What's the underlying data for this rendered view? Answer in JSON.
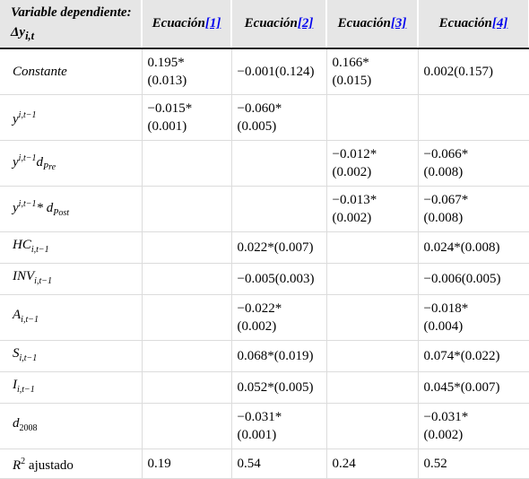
{
  "header": {
    "dependent_label": "Variable dependiente:",
    "dependent_symbol": "Δy",
    "dependent_sub": "i,t",
    "equation_word": "Ecuación",
    "equations": [
      "[1]",
      "[2]",
      "[3]",
      "[4]"
    ]
  },
  "rows": [
    {
      "var": {
        "main": "Constante"
      },
      "cells": [
        "0.195*\n(0.013)",
        "−0.001(0.124)",
        "0.166*\n(0.015)",
        "0.002(0.157)"
      ]
    },
    {
      "var": {
        "main": "y",
        "sup": "i,t−1"
      },
      "cells": [
        "−0.015*\n(0.001)",
        "−0.060*\n(0.005)",
        "",
        ""
      ]
    },
    {
      "var": {
        "main": "y",
        "sup": "i,t−1",
        "extra": "d",
        "extra_sub": "Pre"
      },
      "cells": [
        "",
        "",
        "−0.012*\n(0.002)",
        "−0.066*\n(0.008)"
      ]
    },
    {
      "var": {
        "main": "y",
        "sup": "i,t−1",
        "extra": "* d",
        "extra_sub": "Post"
      },
      "cells": [
        "",
        "",
        "−0.013*\n(0.002)",
        "−0.067*\n(0.008)"
      ]
    },
    {
      "var": {
        "main": "HC",
        "sub": "i,t−1"
      },
      "cells": [
        "",
        "0.022*(0.007)",
        "",
        "0.024*(0.008)"
      ]
    },
    {
      "var": {
        "main": "INV",
        "sub": "i,t−1"
      },
      "cells": [
        "",
        "−0.005(0.003)",
        "",
        "−0.006(0.005)"
      ]
    },
    {
      "var": {
        "main": "A",
        "sub": "i,t−1"
      },
      "cells": [
        "",
        "−0.022*\n(0.002)",
        "",
        "−0.018*\n(0.004)"
      ]
    },
    {
      "var": {
        "main": "S",
        "sub": "i,t−1"
      },
      "cells": [
        "",
        "0.068*(0.019)",
        "",
        "0.074*(0.022)"
      ]
    },
    {
      "var": {
        "main": "I",
        "sub": "i,t−1"
      },
      "cells": [
        "",
        "0.052*(0.005)",
        "",
        "0.045*(0.007)"
      ]
    },
    {
      "var": {
        "main": "d",
        "sub": "2008"
      },
      "cells": [
        "",
        "−0.031*\n(0.001)",
        "",
        "−0.031*\n(0.002)"
      ]
    },
    {
      "var": {
        "main": "R",
        "sup": "2",
        "upright": " ajustado"
      },
      "cells": [
        "0.19",
        "0.54",
        "0.24",
        "0.52"
      ]
    }
  ]
}
